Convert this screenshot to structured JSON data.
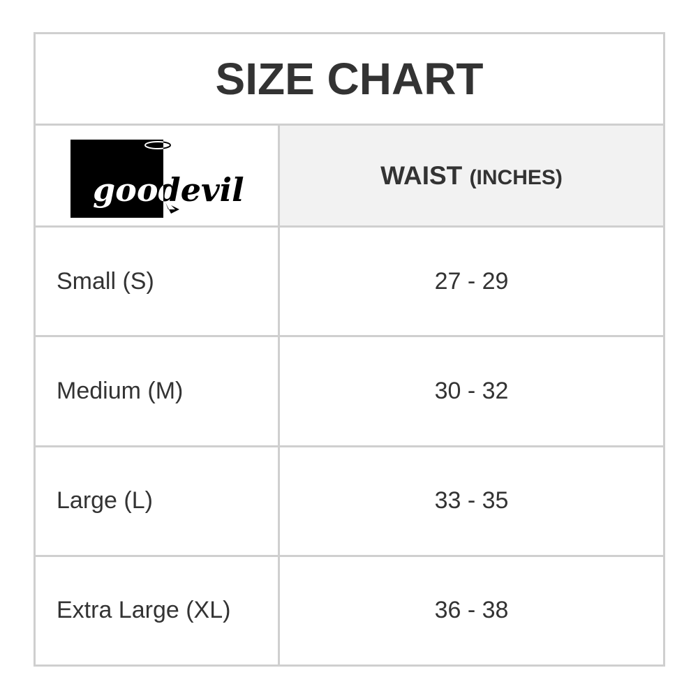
{
  "title": "SIZE CHART",
  "logo": {
    "text": "goodevil"
  },
  "header": {
    "measure": "WAIST",
    "unit": "(INCHES)"
  },
  "rows": [
    {
      "size": "Small (S)",
      "waist": "27 - 29"
    },
    {
      "size": "Medium (M)",
      "waist": "30 - 32"
    },
    {
      "size": "Large (L)",
      "waist": "33 - 35"
    },
    {
      "size": "Extra Large (XL)",
      "waist": "36 - 38"
    }
  ],
  "colors": {
    "border": "#cfcfcf",
    "header_bg": "#f2f2f2",
    "text": "#333333"
  }
}
